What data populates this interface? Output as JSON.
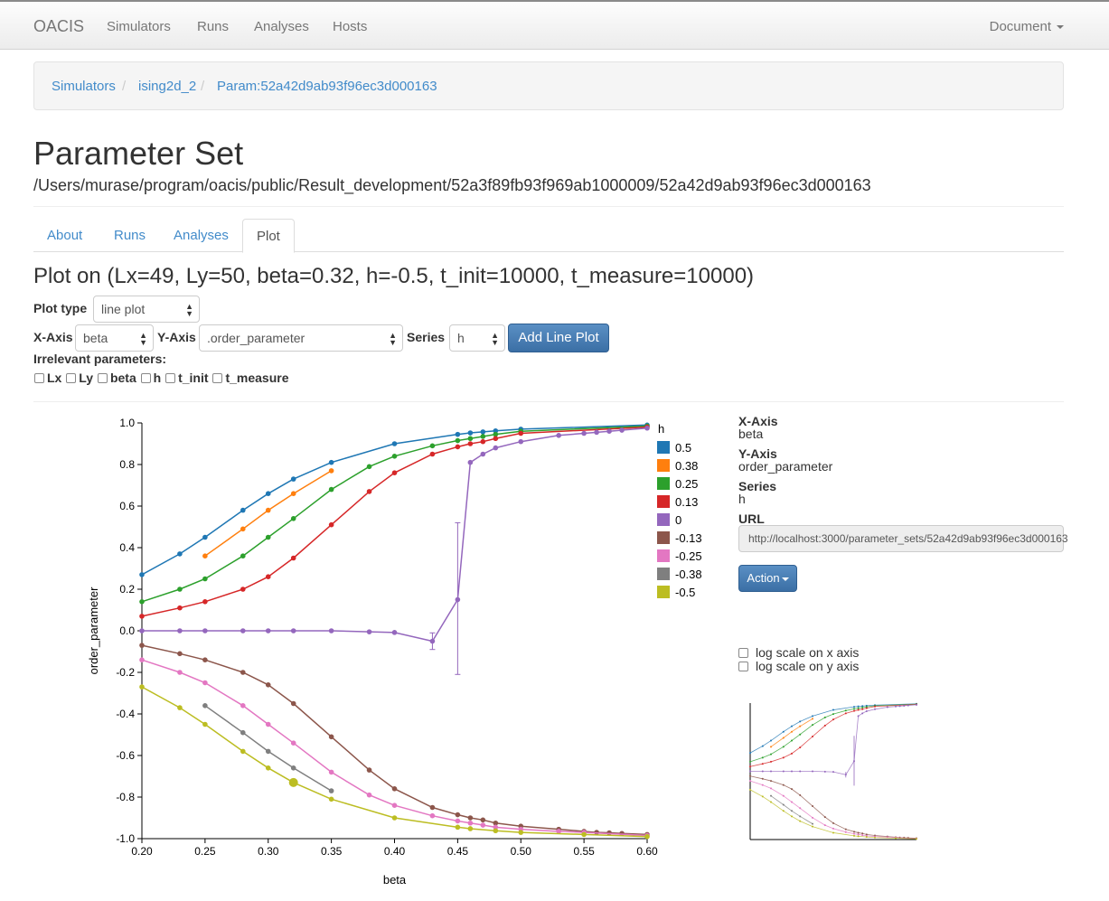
{
  "navbar": {
    "brand": "OACIS",
    "links": [
      "Simulators",
      "Runs",
      "Analyses",
      "Hosts"
    ],
    "right": "Document"
  },
  "breadcrumb": [
    "Simulators",
    "ising2d_2",
    "Param:52a42d9ab93f96ec3d000163"
  ],
  "page": {
    "title": "Parameter Set",
    "path": "/Users/murase/program/oacis/public/Result_development/52a3f89fb93f969ab1000009/52a42d9ab93f96ec3d000163"
  },
  "tabs": [
    "About",
    "Runs",
    "Analyses",
    "Plot"
  ],
  "active_tab": "Plot",
  "plot": {
    "heading": "Plot on (Lx=49, Ly=50, beta=0.32, h=-0.5, t_init=10000, t_measure=10000)",
    "plot_type_label": "Plot type",
    "plot_type_value": "line plot",
    "x_axis_label": "X-Axis",
    "x_axis_value": "beta",
    "y_axis_label": "Y-Axis",
    "y_axis_value": ".order_parameter",
    "series_label": "Series",
    "series_value": "h",
    "add_button": "Add Line Plot",
    "irrelevant_label": "Irrelevant parameters:",
    "irrelevant_params": [
      "Lx",
      "Ly",
      "beta",
      "h",
      "t_init",
      "t_measure"
    ]
  },
  "side": {
    "x_axis_label": "X-Axis",
    "x_axis_value": "beta",
    "y_axis_label": "Y-Axis",
    "y_axis_value": "order_parameter",
    "series_label": "Series",
    "series_value": "h",
    "url_label": "URL",
    "url_value": "http://localhost:3000/parameter_sets/52a42d9ab93f96ec3d000163",
    "action_button": "Action",
    "log_x": "log scale on x axis",
    "log_y": "log scale on y axis"
  },
  "chart_data": {
    "type": "line",
    "xlabel": "beta",
    "ylabel": "order_parameter",
    "xlim": [
      0.2,
      0.6
    ],
    "ylim": [
      -1.0,
      1.0
    ],
    "xticks": [
      "0.20",
      "0.25",
      "0.30",
      "0.35",
      "0.40",
      "0.45",
      "0.50",
      "0.55",
      "0.60"
    ],
    "yticks": [
      "1.0",
      "0.8",
      "0.6",
      "0.4",
      "0.2",
      "0.0",
      "-0.2",
      "-0.4",
      "-0.6",
      "-0.8",
      "-1.0"
    ],
    "legend_title": "h",
    "legend_position": "top-right",
    "highlight": {
      "x": 0.32,
      "y": -0.73
    },
    "series": [
      {
        "name": "0.5",
        "color": "#1f77b4",
        "x": [
          0.2,
          0.23,
          0.25,
          0.28,
          0.3,
          0.32,
          0.35,
          0.4,
          0.45,
          0.46,
          0.47,
          0.48,
          0.5,
          0.6
        ],
        "y": [
          0.27,
          0.37,
          0.45,
          0.58,
          0.66,
          0.73,
          0.81,
          0.9,
          0.945,
          0.952,
          0.957,
          0.962,
          0.97,
          0.99
        ]
      },
      {
        "name": "0.38",
        "color": "#ff7f0e",
        "x": [
          0.25,
          0.28,
          0.3,
          0.32,
          0.35
        ],
        "y": [
          0.36,
          0.49,
          0.58,
          0.66,
          0.77
        ]
      },
      {
        "name": "0.25",
        "color": "#2ca02c",
        "x": [
          0.2,
          0.23,
          0.25,
          0.28,
          0.3,
          0.32,
          0.35,
          0.38,
          0.4,
          0.43,
          0.45,
          0.46,
          0.47,
          0.48,
          0.5,
          0.6
        ],
        "y": [
          0.14,
          0.2,
          0.25,
          0.36,
          0.45,
          0.54,
          0.68,
          0.79,
          0.84,
          0.89,
          0.915,
          0.925,
          0.935,
          0.945,
          0.96,
          0.985
        ]
      },
      {
        "name": "0.13",
        "color": "#d62728",
        "x": [
          0.2,
          0.23,
          0.25,
          0.28,
          0.3,
          0.32,
          0.35,
          0.38,
          0.4,
          0.43,
          0.45,
          0.46,
          0.47,
          0.48,
          0.5,
          0.6
        ],
        "y": [
          0.07,
          0.11,
          0.14,
          0.2,
          0.26,
          0.35,
          0.51,
          0.67,
          0.76,
          0.85,
          0.885,
          0.9,
          0.91,
          0.925,
          0.95,
          0.98
        ]
      },
      {
        "name": "0",
        "color": "#9467bd",
        "x": [
          0.2,
          0.23,
          0.25,
          0.28,
          0.3,
          0.32,
          0.35,
          0.38,
          0.4,
          0.43,
          0.45,
          0.46,
          0.47,
          0.48,
          0.5,
          0.53,
          0.55,
          0.56,
          0.57,
          0.58,
          0.6
        ],
        "y": [
          0.0,
          0.0,
          0.0,
          0.0,
          0.0,
          0.0,
          0.0,
          -0.005,
          -0.008,
          -0.05,
          0.15,
          0.81,
          0.85,
          0.88,
          0.91,
          0.94,
          0.95,
          0.955,
          0.96,
          0.965,
          0.975
        ],
        "errors": [
          {
            "x": 0.43,
            "lo": -0.09,
            "hi": -0.01
          },
          {
            "x": 0.45,
            "lo": -0.21,
            "hi": 0.52
          }
        ]
      },
      {
        "name": "-0.13",
        "color": "#8c564b",
        "x": [
          0.2,
          0.23,
          0.25,
          0.28,
          0.3,
          0.32,
          0.35,
          0.38,
          0.4,
          0.43,
          0.45,
          0.46,
          0.47,
          0.48,
          0.5,
          0.53,
          0.55,
          0.56,
          0.57,
          0.58,
          0.6
        ],
        "y": [
          -0.07,
          -0.11,
          -0.14,
          -0.2,
          -0.26,
          -0.35,
          -0.51,
          -0.67,
          -0.76,
          -0.85,
          -0.885,
          -0.9,
          -0.91,
          -0.925,
          -0.94,
          -0.955,
          -0.965,
          -0.97,
          -0.972,
          -0.975,
          -0.98
        ]
      },
      {
        "name": "-0.25",
        "color": "#e377c2",
        "x": [
          0.2,
          0.23,
          0.25,
          0.28,
          0.3,
          0.32,
          0.35,
          0.38,
          0.4,
          0.43,
          0.45,
          0.46,
          0.47,
          0.48,
          0.5,
          0.53,
          0.55,
          0.6
        ],
        "y": [
          -0.14,
          -0.2,
          -0.25,
          -0.36,
          -0.45,
          -0.54,
          -0.68,
          -0.79,
          -0.84,
          -0.89,
          -0.915,
          -0.925,
          -0.935,
          -0.945,
          -0.955,
          -0.965,
          -0.97,
          -0.985
        ]
      },
      {
        "name": "-0.38",
        "color": "#7f7f7f",
        "x": [
          0.25,
          0.28,
          0.3,
          0.32,
          0.35
        ],
        "y": [
          -0.36,
          -0.49,
          -0.58,
          -0.66,
          -0.77
        ]
      },
      {
        "name": "-0.5",
        "color": "#bcbd22",
        "x": [
          0.2,
          0.23,
          0.25,
          0.28,
          0.3,
          0.32,
          0.35,
          0.4,
          0.45,
          0.46,
          0.48,
          0.5,
          0.55,
          0.6
        ],
        "y": [
          -0.27,
          -0.37,
          -0.45,
          -0.58,
          -0.66,
          -0.73,
          -0.81,
          -0.9,
          -0.945,
          -0.952,
          -0.962,
          -0.97,
          -0.98,
          -0.99
        ]
      }
    ]
  }
}
